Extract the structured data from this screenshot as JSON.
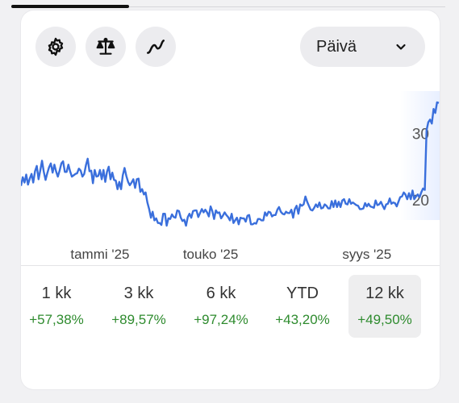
{
  "range_select": {
    "value": "Päivä",
    "icon": "chevron-down-icon"
  },
  "toolbar_icons": [
    "gear-icon",
    "balance-scale-icon",
    "trend-line-icon"
  ],
  "chart_data": {
    "type": "line",
    "color": "#3a6fdc",
    "x_tick_labels": [
      "tammi '25",
      "touko '25",
      "syys '25"
    ],
    "y_tick_labels": [
      "20",
      "30"
    ],
    "y_ticks": [
      20,
      30
    ],
    "ylim": [
      13.3,
      36.4
    ],
    "values": [
      22.1,
      23.4,
      22.6,
      23.8,
      22.3,
      23.2,
      23.9,
      22.6,
      24.3,
      25.1,
      23.1,
      24.4,
      25.9,
      24.2,
      23.0,
      24.0,
      24.9,
      25.5,
      24.1,
      25.3,
      24.3,
      23.5,
      24.4,
      25.5,
      25.8,
      24.2,
      24.2,
      25.3,
      24.3,
      23.5,
      23.7,
      23.9,
      24.0,
      24.7,
      24.4,
      23.5,
      23.9,
      25.2,
      26.2,
      24.3,
      24.4,
      22.5,
      24.5,
      23.5,
      23.6,
      24.5,
      23.1,
      24.5,
      22.7,
      24.2,
      25.0,
      23.1,
      24.1,
      23.0,
      22.9,
      21.6,
      22.7,
      21.6,
      23.7,
      24.8,
      23.6,
      22.7,
      22.2,
      22.6,
      23.1,
      21.8,
      23.1,
      23.2,
      21.2,
      21.6,
      20.8,
      21.1,
      19.6,
      18.6,
      17.3,
      18.2,
      16.9,
      17.2,
      16.5,
      16.5,
      16.2,
      17.9,
      17.9,
      16.1,
      17.2,
      17.1,
      17.8,
      17.4,
      17.3,
      18.4,
      18.3,
      17.3,
      16.8,
      17.0,
      16.1,
      17.4,
      17.9,
      17.3,
      18.3,
      18.4,
      18.4,
      17.4,
      18.0,
      18.6,
      18.1,
      18.5,
      18.1,
      17.5,
      19.0,
      18.3,
      17.1,
      18.4,
      18.0,
      18.1,
      17.2,
      17.6,
      18.1,
      17.7,
      17.4,
      16.9,
      17.9,
      16.5,
      16.9,
      17.3,
      16.3,
      17.3,
      17.2,
      17.2,
      16.7,
      17.6,
      17.7,
      16.3,
      16.3,
      16.5,
      16.4,
      17.1,
      17.1,
      16.9,
      16.9,
      18.1,
      17.6,
      18.2,
      18.1,
      17.5,
      17.7,
      17.7,
      18.5,
      18.9,
      18.2,
      17.9,
      17.8,
      18.2,
      18.0,
      18.0,
      18.5,
      17.3,
      18.6,
      19.1,
      17.9,
      19.3,
      19.1,
      19.3,
      20.5,
      19.7,
      19.1,
      18.5,
      18.4,
      18.8,
      19.3,
      18.9,
      19.6,
      18.7,
      18.8,
      19.3,
      19.1,
      18.7,
      18.7,
      19.8,
      18.9,
      19.9,
      18.9,
      19.7,
      18.9,
      19.9,
      20.1,
      19.4,
      19.3,
      20.1,
      19.4,
      19.6,
      19.4,
      19.2,
      19.1,
      18.6,
      18.6,
      18.7,
      19.5,
      19.0,
      19.4,
      19.0,
      18.9,
      18.8,
      19.9,
      19.2,
      19.3,
      19.7,
      19.1,
      18.6,
      19.3,
      19.4,
      20.2,
      19.4,
      19.6,
      19.5,
      19.0,
      19.7,
      20.4,
      20.5,
      21.1,
      20.8,
      20.1,
      21.0,
      20.1,
      21.4,
      20.1,
      20.5,
      20.8,
      20.4,
      21.1,
      21.7,
      21.5,
      30.5,
      31.7,
      32.1,
      31.5,
      33.7,
      33.1,
      34.7,
      34.6
    ]
  },
  "periods": [
    {
      "label": "1 kk",
      "change": "+57,38%"
    },
    {
      "label": "3 kk",
      "change": "+89,57%"
    },
    {
      "label": "6 kk",
      "change": "+97,24%"
    },
    {
      "label": "YTD",
      "change": "+43,20%"
    },
    {
      "label": "12 kk",
      "change": "+49,50%"
    }
  ]
}
